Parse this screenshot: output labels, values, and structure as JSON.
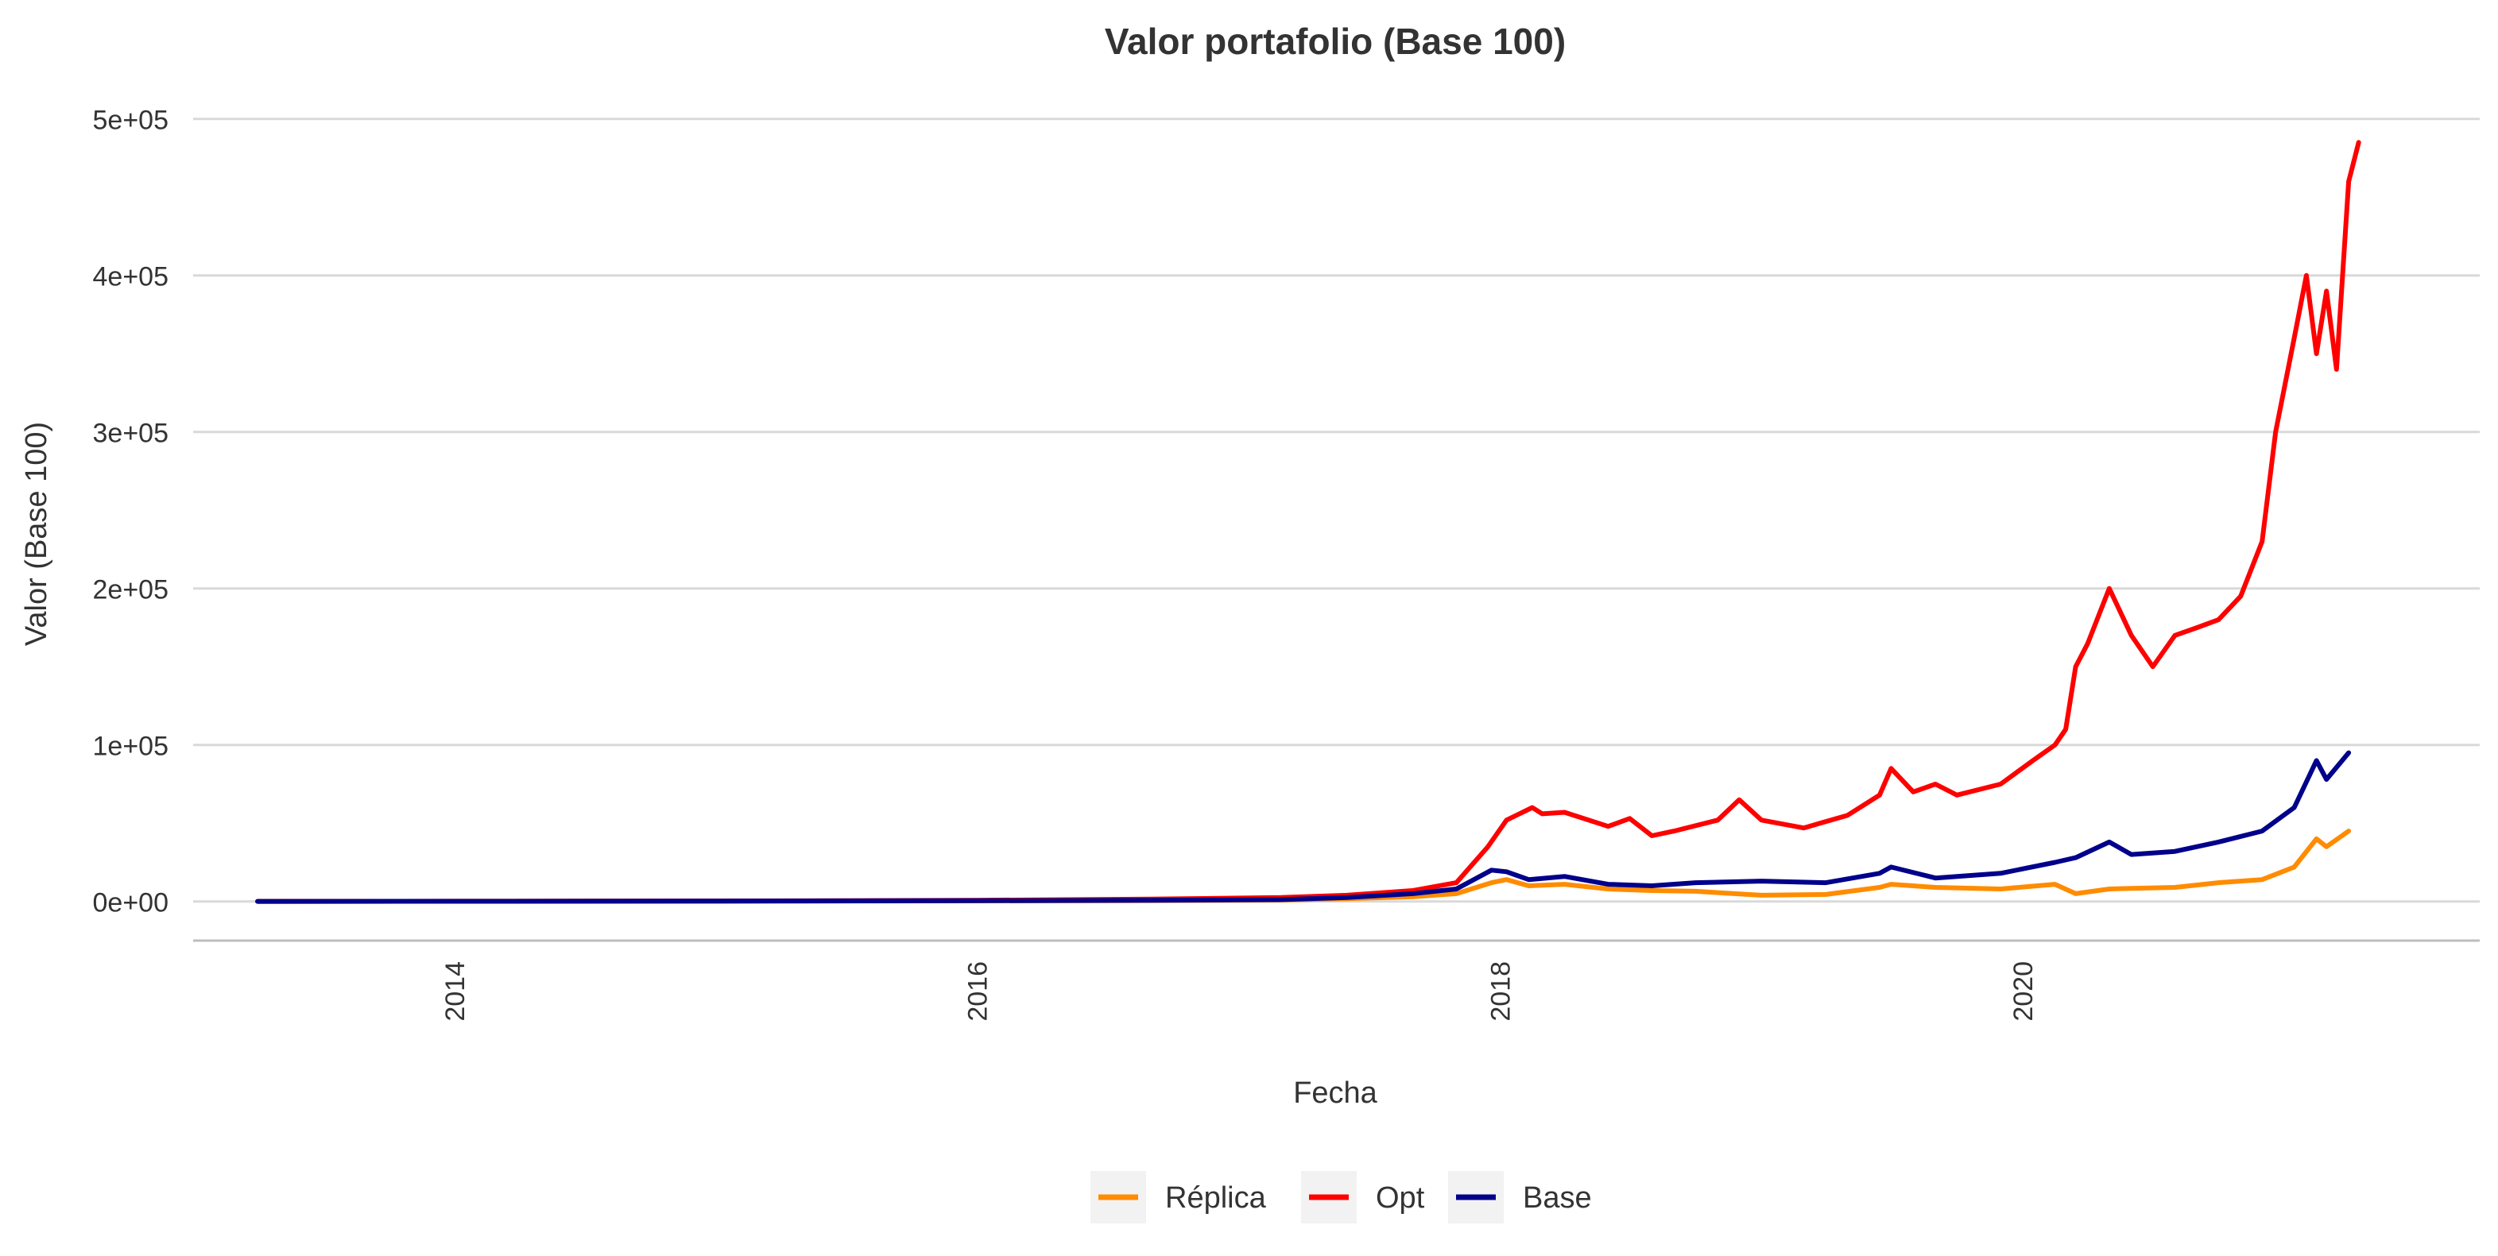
{
  "chart_data": {
    "type": "line",
    "title": "Valor portafolio (Base 100)",
    "xlabel": "Fecha",
    "ylabel": "Valor (Base 100)",
    "x_ticks": [
      "2014",
      "2016",
      "2018",
      "2020"
    ],
    "y_ticks": [
      "0e+00",
      "1e+05",
      "2e+05",
      "3e+05",
      "4e+05",
      "5e+05"
    ],
    "xlim": [
      "2013-01-01",
      "2021-10-01"
    ],
    "ylim": [
      -25000,
      510000
    ],
    "grid": "horizontal",
    "legend_position": "bottom",
    "series": [
      {
        "name": "Réplica",
        "color": "#ff8c00",
        "points": [
          [
            "2013-04-01",
            100
          ],
          [
            "2014-01-01",
            150
          ],
          [
            "2015-01-01",
            250
          ],
          [
            "2016-01-01",
            400
          ],
          [
            "2016-09-01",
            600
          ],
          [
            "2017-03-01",
            900
          ],
          [
            "2017-06-01",
            1800
          ],
          [
            "2017-09-01",
            3000
          ],
          [
            "2017-11-01",
            5000
          ],
          [
            "2017-12-20",
            12000
          ],
          [
            "2018-01-10",
            14000
          ],
          [
            "2018-02-10",
            10000
          ],
          [
            "2018-04-01",
            11000
          ],
          [
            "2018-06-01",
            8000
          ],
          [
            "2018-08-01",
            7000
          ],
          [
            "2018-10-01",
            6500
          ],
          [
            "2019-01-01",
            4000
          ],
          [
            "2019-04-01",
            4500
          ],
          [
            "2019-06-15",
            9000
          ],
          [
            "2019-07-01",
            11000
          ],
          [
            "2019-09-01",
            9000
          ],
          [
            "2019-12-01",
            8000
          ],
          [
            "2020-02-15",
            11000
          ],
          [
            "2020-03-15",
            5000
          ],
          [
            "2020-05-01",
            8000
          ],
          [
            "2020-08-01",
            9000
          ],
          [
            "2020-10-01",
            12000
          ],
          [
            "2020-12-01",
            14000
          ],
          [
            "2021-01-15",
            22000
          ],
          [
            "2021-02-15",
            40000
          ],
          [
            "2021-03-01",
            35000
          ],
          [
            "2021-04-01",
            45000
          ]
        ]
      },
      {
        "name": "Opt",
        "color": "#ff0000",
        "points": [
          [
            "2013-04-01",
            100
          ],
          [
            "2014-01-01",
            200
          ],
          [
            "2015-01-01",
            300
          ],
          [
            "2016-01-01",
            800
          ],
          [
            "2016-09-01",
            1500
          ],
          [
            "2017-03-01",
            2500
          ],
          [
            "2017-06-01",
            4000
          ],
          [
            "2017-09-01",
            7000
          ],
          [
            "2017-11-01",
            12000
          ],
          [
            "2017-12-15",
            35000
          ],
          [
            "2018-01-10",
            52000
          ],
          [
            "2018-02-15",
            60000
          ],
          [
            "2018-03-01",
            56000
          ],
          [
            "2018-04-01",
            57000
          ],
          [
            "2018-06-01",
            48000
          ],
          [
            "2018-07-01",
            53000
          ],
          [
            "2018-08-01",
            42000
          ],
          [
            "2018-09-01",
            45000
          ],
          [
            "2018-11-01",
            52000
          ],
          [
            "2018-12-01",
            65000
          ],
          [
            "2019-01-01",
            52000
          ],
          [
            "2019-03-01",
            47000
          ],
          [
            "2019-05-01",
            55000
          ],
          [
            "2019-06-15",
            68000
          ],
          [
            "2019-07-01",
            85000
          ],
          [
            "2019-08-01",
            70000
          ],
          [
            "2019-09-01",
            75000
          ],
          [
            "2019-10-01",
            68000
          ],
          [
            "2019-12-01",
            75000
          ],
          [
            "2020-01-15",
            90000
          ],
          [
            "2020-02-15",
            100000
          ],
          [
            "2020-03-01",
            110000
          ],
          [
            "2020-03-15",
            150000
          ],
          [
            "2020-04-01",
            165000
          ],
          [
            "2020-05-01",
            200000
          ],
          [
            "2020-06-01",
            170000
          ],
          [
            "2020-07-01",
            150000
          ],
          [
            "2020-08-01",
            170000
          ],
          [
            "2020-09-01",
            175000
          ],
          [
            "2020-10-01",
            180000
          ],
          [
            "2020-11-01",
            195000
          ],
          [
            "2020-12-01",
            230000
          ],
          [
            "2020-12-20",
            300000
          ],
          [
            "2021-01-15",
            360000
          ],
          [
            "2021-02-01",
            400000
          ],
          [
            "2021-02-15",
            350000
          ],
          [
            "2021-03-01",
            390000
          ],
          [
            "2021-03-15",
            340000
          ],
          [
            "2021-04-01",
            460000
          ],
          [
            "2021-04-15",
            485000
          ]
        ]
      },
      {
        "name": "Base",
        "color": "#00008b",
        "points": [
          [
            "2013-04-01",
            100
          ],
          [
            "2014-01-01",
            150
          ],
          [
            "2015-01-01",
            250
          ],
          [
            "2016-01-01",
            500
          ],
          [
            "2016-09-01",
            800
          ],
          [
            "2017-03-01",
            1200
          ],
          [
            "2017-06-01",
            2500
          ],
          [
            "2017-09-01",
            5000
          ],
          [
            "2017-11-01",
            8000
          ],
          [
            "2017-12-20",
            20000
          ],
          [
            "2018-01-10",
            19000
          ],
          [
            "2018-02-10",
            14000
          ],
          [
            "2018-04-01",
            16000
          ],
          [
            "2018-06-01",
            11000
          ],
          [
            "2018-08-01",
            10000
          ],
          [
            "2018-10-01",
            12000
          ],
          [
            "2019-01-01",
            13000
          ],
          [
            "2019-04-01",
            12000
          ],
          [
            "2019-06-15",
            18000
          ],
          [
            "2019-07-01",
            22000
          ],
          [
            "2019-09-01",
            15000
          ],
          [
            "2019-12-01",
            18000
          ],
          [
            "2020-02-15",
            25000
          ],
          [
            "2020-03-15",
            28000
          ],
          [
            "2020-05-01",
            38000
          ],
          [
            "2020-06-01",
            30000
          ],
          [
            "2020-08-01",
            32000
          ],
          [
            "2020-10-01",
            38000
          ],
          [
            "2020-12-01",
            45000
          ],
          [
            "2021-01-15",
            60000
          ],
          [
            "2021-02-15",
            90000
          ],
          [
            "2021-03-01",
            78000
          ],
          [
            "2021-04-01",
            95000
          ]
        ]
      }
    ]
  }
}
